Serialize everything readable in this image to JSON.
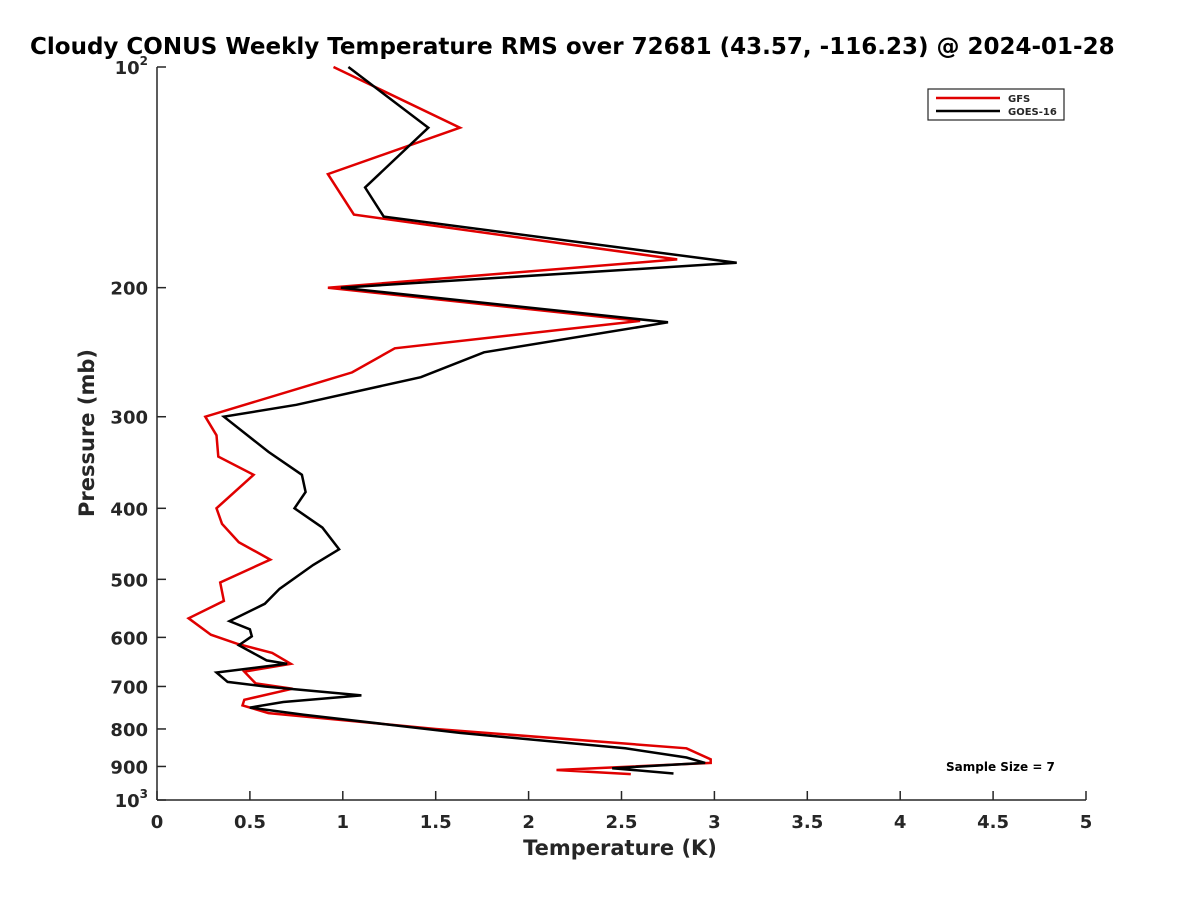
{
  "chart_data": {
    "type": "line",
    "title": "Cloudy CONUS Weekly Temperature RMS over 72681 (43.57, -116.23) @ 2024-01-28",
    "xlabel": "Temperature (K)",
    "ylabel": "Pressure (mb)",
    "xlim": [
      0,
      5
    ],
    "ylim": [
      100,
      1000
    ],
    "y_scale": "log",
    "y_reversed": true,
    "grid": false,
    "legend_position": "top-right",
    "x_ticks": [
      "0",
      "0.5",
      "1",
      "1.5",
      "2",
      "2.5",
      "3",
      "3.5",
      "4",
      "4.5",
      "5"
    ],
    "y_ticks": [
      {
        "value": 100,
        "base": "10",
        "exp": "2"
      },
      {
        "value": 200,
        "label": "200"
      },
      {
        "value": 300,
        "label": "300"
      },
      {
        "value": 400,
        "label": "400"
      },
      {
        "value": 500,
        "label": "500"
      },
      {
        "value": 600,
        "label": "600"
      },
      {
        "value": 700,
        "label": "700"
      },
      {
        "value": 800,
        "label": "800"
      },
      {
        "value": 900,
        "label": "900"
      },
      {
        "value": 1000,
        "base": "10",
        "exp": "3"
      }
    ],
    "annotation": "Sample Size = 7",
    "series": [
      {
        "name": "GFS",
        "color": "#e00000",
        "points": [
          [
            0.95,
            100
          ],
          [
            1.63,
            121
          ],
          [
            0.92,
            140
          ],
          [
            1.06,
            159
          ],
          [
            2.8,
            183
          ],
          [
            0.92,
            200
          ],
          [
            2.6,
            222
          ],
          [
            1.28,
            242
          ],
          [
            1.05,
            261
          ],
          [
            0.26,
            300
          ],
          [
            0.32,
            318
          ],
          [
            0.33,
            340
          ],
          [
            0.52,
            360
          ],
          [
            0.32,
            400
          ],
          [
            0.35,
            420
          ],
          [
            0.44,
            445
          ],
          [
            0.61,
            470
          ],
          [
            0.34,
            505
          ],
          [
            0.36,
            535
          ],
          [
            0.17,
            565
          ],
          [
            0.29,
            595
          ],
          [
            0.43,
            612
          ],
          [
            0.62,
            630
          ],
          [
            0.72,
            652
          ],
          [
            0.47,
            668
          ],
          [
            0.53,
            693
          ],
          [
            0.73,
            705
          ],
          [
            0.47,
            730
          ],
          [
            0.46,
            743
          ],
          [
            0.6,
            761
          ],
          [
            1.5,
            800
          ],
          [
            2.85,
            850
          ],
          [
            2.98,
            880
          ],
          [
            2.98,
            890
          ],
          [
            2.15,
            910
          ],
          [
            2.55,
            922
          ]
        ]
      },
      {
        "name": "GOES-16",
        "color": "#000000",
        "points": [
          [
            1.03,
            100
          ],
          [
            1.46,
            121
          ],
          [
            1.12,
            146
          ],
          [
            1.22,
            160
          ],
          [
            3.12,
            185
          ],
          [
            0.99,
            200
          ],
          [
            2.75,
            223
          ],
          [
            1.76,
            245
          ],
          [
            1.42,
            265
          ],
          [
            0.75,
            289
          ],
          [
            0.36,
            300
          ],
          [
            0.6,
            335
          ],
          [
            0.78,
            360
          ],
          [
            0.8,
            380
          ],
          [
            0.74,
            400
          ],
          [
            0.89,
            425
          ],
          [
            0.98,
            455
          ],
          [
            0.84,
            478
          ],
          [
            0.66,
            515
          ],
          [
            0.58,
            540
          ],
          [
            0.39,
            570
          ],
          [
            0.5,
            585
          ],
          [
            0.51,
            598
          ],
          [
            0.44,
            615
          ],
          [
            0.59,
            645
          ],
          [
            0.7,
            652
          ],
          [
            0.32,
            670
          ],
          [
            0.38,
            690
          ],
          [
            0.58,
            700
          ],
          [
            1.1,
            720
          ],
          [
            0.68,
            735
          ],
          [
            0.5,
            748
          ],
          [
            0.79,
            765
          ],
          [
            1.63,
            810
          ],
          [
            2.52,
            850
          ],
          [
            2.85,
            875
          ],
          [
            2.95,
            890
          ],
          [
            2.45,
            905
          ],
          [
            2.78,
            920
          ]
        ]
      }
    ]
  }
}
